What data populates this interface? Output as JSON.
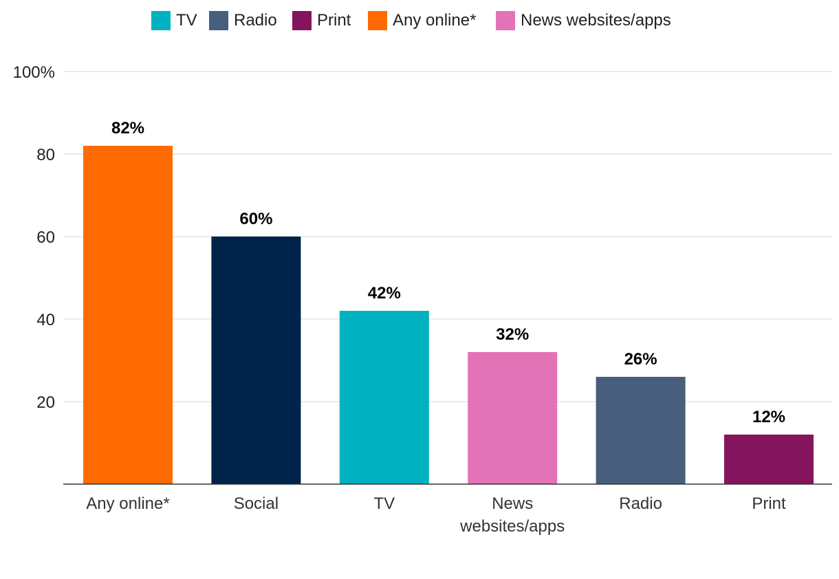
{
  "chart_data": {
    "type": "bar",
    "categories": [
      "Any online*",
      "Social",
      "TV",
      "News websites/apps",
      "Radio",
      "Print"
    ],
    "category_lines": [
      [
        "Any online*"
      ],
      [
        "Social"
      ],
      [
        "TV"
      ],
      [
        "News",
        "websites/apps"
      ],
      [
        "Radio"
      ],
      [
        "Print"
      ]
    ],
    "values": [
      82,
      60,
      42,
      32,
      26,
      12
    ],
    "value_labels": [
      "82%",
      "60%",
      "42%",
      "32%",
      "26%",
      "12%"
    ],
    "bar_colors": [
      "#ff6b00",
      "#002349",
      "#00b1bf",
      "#e273b6",
      "#485e7d",
      "#84145e"
    ],
    "title": "",
    "xlabel": "",
    "ylabel": "",
    "ylim": [
      0,
      100
    ],
    "yticks": [
      20,
      40,
      60,
      80,
      100
    ],
    "ytick_labels": [
      "20",
      "40",
      "60",
      "80",
      "100%"
    ],
    "grid": true,
    "legend_position": "top-center",
    "legend": [
      {
        "label": "TV",
        "color": "#00b1bf"
      },
      {
        "label": "Radio",
        "color": "#485e7d"
      },
      {
        "label": "Print",
        "color": "#84145e"
      },
      {
        "label": "Any online*",
        "color": "#ff6b00"
      },
      {
        "label": "News websites/apps",
        "color": "#e273b6"
      }
    ]
  }
}
